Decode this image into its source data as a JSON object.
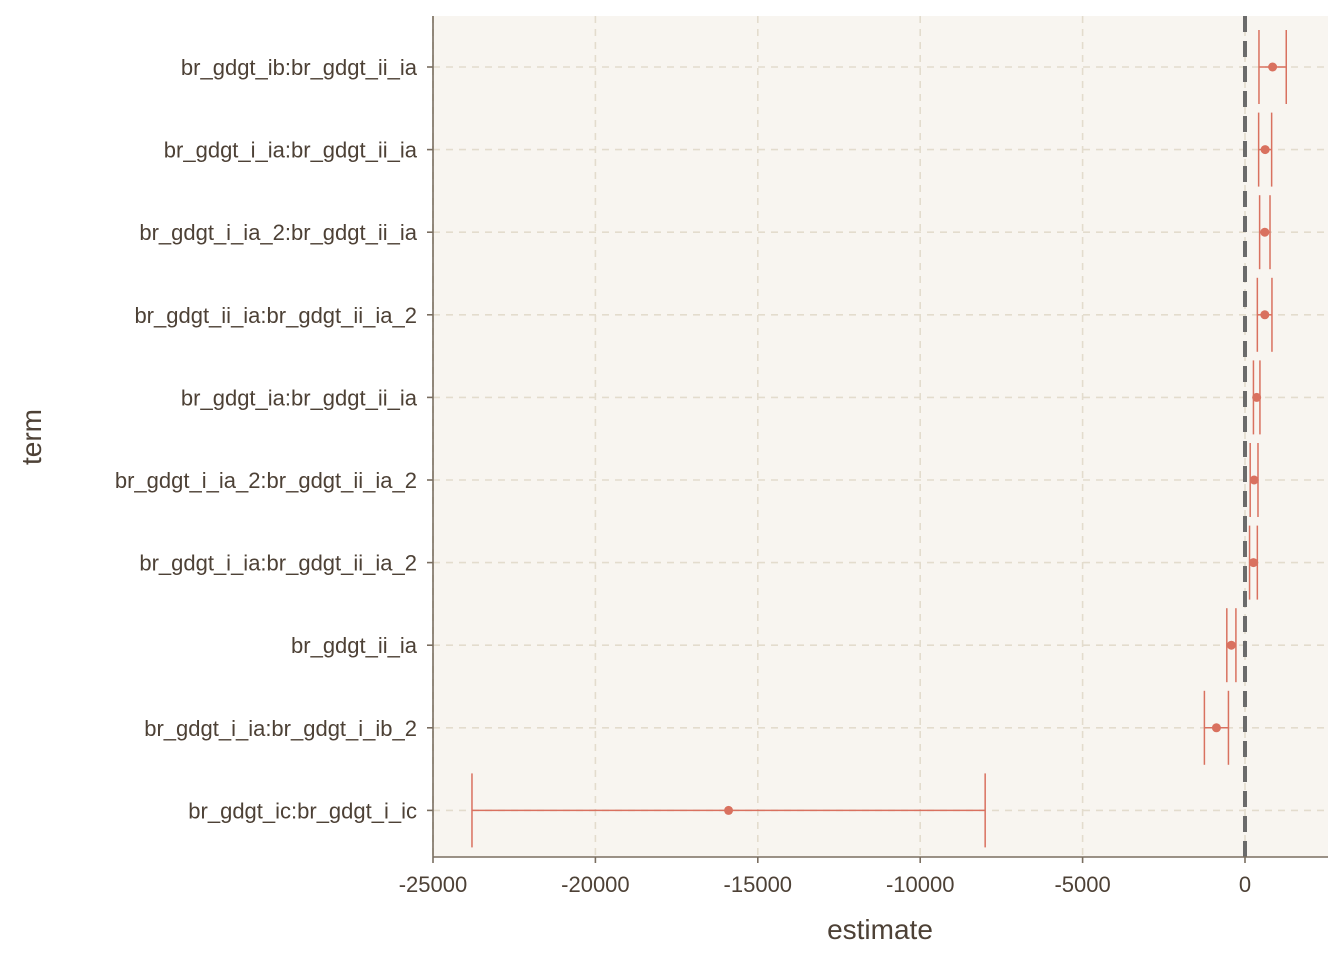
{
  "chart_data": {
    "type": "errorbar",
    "xlabel": "estimate",
    "ylabel": "term",
    "xlim": [
      -25000,
      1400
    ],
    "x_ticks": [
      -25000,
      -20000,
      -15000,
      -10000,
      -5000,
      0
    ],
    "reference_line": 0,
    "grid": true,
    "colors": {
      "panel": "#f8f5f0",
      "grid": "#e3dccd",
      "axis": "#7a6e60",
      "text": "#4d4136",
      "point": "#d9715f",
      "reference": "#6b6b6b"
    },
    "terms": [
      {
        "term": "br_gdgt_ib:br_gdgt_ii_ia",
        "estimate": 850,
        "low": 430,
        "high": 1270
      },
      {
        "term": "br_gdgt_i_ia:br_gdgt_ii_ia",
        "estimate": 620,
        "low": 420,
        "high": 820
      },
      {
        "term": "br_gdgt_i_ia_2:br_gdgt_ii_ia",
        "estimate": 610,
        "low": 450,
        "high": 770
      },
      {
        "term": "br_gdgt_ii_ia:br_gdgt_ii_ia_2",
        "estimate": 610,
        "low": 380,
        "high": 830
      },
      {
        "term": "br_gdgt_ia:br_gdgt_ii_ia",
        "estimate": 360,
        "low": 260,
        "high": 460
      },
      {
        "term": "br_gdgt_i_ia_2:br_gdgt_ii_ia_2",
        "estimate": 280,
        "low": 160,
        "high": 400
      },
      {
        "term": "br_gdgt_i_ia:br_gdgt_ii_ia_2",
        "estimate": 260,
        "low": 140,
        "high": 380
      },
      {
        "term": "br_gdgt_ii_ia",
        "estimate": -420,
        "low": -560,
        "high": -280
      },
      {
        "term": "br_gdgt_i_ia:br_gdgt_i_ib_2",
        "estimate": -880,
        "low": -1250,
        "high": -510
      },
      {
        "term": "br_gdgt_ic:br_gdgt_i_ic",
        "estimate": -15900,
        "low": -23800,
        "high": -8000
      }
    ]
  }
}
